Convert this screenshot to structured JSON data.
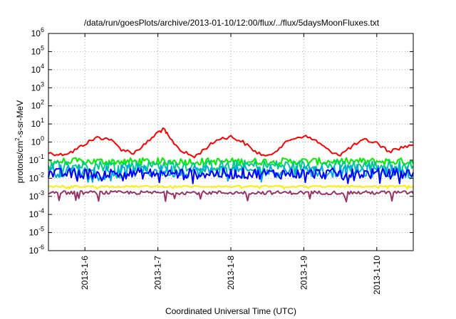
{
  "chart_data": {
    "type": "line",
    "title": "/data/run/goesPlots/archive/2013-01-10/12:00/flux/../flux/5daysMoonFluxes.txt",
    "xlabel": "Coordinated Universal Time (UTC)",
    "ylabel": {
      "prefix": "protons/cm",
      "superscript": "2",
      "suffix": "-s-sr-MeV"
    },
    "y_scale": "log",
    "ylim": [
      1e-06,
      1000000.0
    ],
    "y_ticks": [
      {
        "value": 1e-06,
        "base": "10",
        "exp": "-6"
      },
      {
        "value": 1e-05,
        "base": "10",
        "exp": "-5"
      },
      {
        "value": 0.0001,
        "base": "10",
        "exp": "-4"
      },
      {
        "value": 0.001,
        "base": "10",
        "exp": "-3"
      },
      {
        "value": 0.01,
        "base": "10",
        "exp": "-2"
      },
      {
        "value": 0.1,
        "base": "10",
        "exp": "-1"
      },
      {
        "value": 1,
        "base": "10",
        "exp": "0"
      },
      {
        "value": 10,
        "base": "10",
        "exp": "1"
      },
      {
        "value": 100,
        "base": "10",
        "exp": "2"
      },
      {
        "value": 1000,
        "base": "10",
        "exp": "3"
      },
      {
        "value": 10000,
        "base": "10",
        "exp": "4"
      },
      {
        "value": 100000,
        "base": "10",
        "exp": "5"
      },
      {
        "value": 1000000,
        "base": "10",
        "exp": "6"
      }
    ],
    "xlim": [
      "2013-01-05 12:00",
      "2013-01-10 12:00"
    ],
    "x_ticks": [
      {
        "value": "2013-01-06 00:00",
        "label": "2013-1-6"
      },
      {
        "value": "2013-01-07 00:00",
        "label": "2013-1-7"
      },
      {
        "value": "2013-01-08 00:00",
        "label": "2013-1-8"
      },
      {
        "value": "2013-01-09 00:00",
        "label": "2013-1-9"
      },
      {
        "value": "2013-01-10 00:00",
        "label": "2013-1-10"
      }
    ],
    "grid": true,
    "legend": "none",
    "series": [
      {
        "color": "#ff0000",
        "points": [
          [
            "2013-01-05 12:00",
            0.25
          ],
          [
            "2013-01-05 16:00",
            0.2
          ],
          [
            "2013-01-05 20:00",
            0.3
          ],
          [
            "2013-01-06 00:00",
            0.8
          ],
          [
            "2013-01-06 04:00",
            1.8
          ],
          [
            "2013-01-06 08:00",
            1.5
          ],
          [
            "2013-01-06 12:00",
            0.4
          ],
          [
            "2013-01-06 16:00",
            0.25
          ],
          [
            "2013-01-06 20:00",
            0.8
          ],
          [
            "2013-01-07 00:00",
            3.5
          ],
          [
            "2013-01-07 02:00",
            5
          ],
          [
            "2013-01-07 04:00",
            1.5
          ],
          [
            "2013-01-07 08:00",
            0.3
          ],
          [
            "2013-01-07 12:00",
            0.15
          ],
          [
            "2013-01-07 16:00",
            0.5
          ],
          [
            "2013-01-07 20:00",
            1.5
          ],
          [
            "2013-01-08 00:00",
            2
          ],
          [
            "2013-01-08 04:00",
            1
          ],
          [
            "2013-01-08 08:00",
            0.3
          ],
          [
            "2013-01-08 12:00",
            0.15
          ],
          [
            "2013-01-08 16:00",
            0.5
          ],
          [
            "2013-01-08 20:00",
            1.5
          ],
          [
            "2013-01-09 00:00",
            2.2
          ],
          [
            "2013-01-09 04:00",
            1.2
          ],
          [
            "2013-01-09 08:00",
            0.35
          ],
          [
            "2013-01-09 12:00",
            0.2
          ],
          [
            "2013-01-09 16:00",
            0.6
          ],
          [
            "2013-01-09 20:00",
            1.3
          ],
          [
            "2013-01-10 00:00",
            0.9
          ],
          [
            "2013-01-10 04:00",
            0.3
          ],
          [
            "2013-01-10 08:00",
            0.5
          ],
          [
            "2013-01-10 12:00",
            0.7
          ]
        ]
      },
      {
        "color": "#00ee00",
        "noisy": true,
        "center": 0.085,
        "spread": 0.2,
        "min": 0.055
      },
      {
        "color": "#00cc88",
        "noisy": true,
        "center": 0.05,
        "spread": 0.3,
        "min": 0.01
      },
      {
        "color": "#00aadd",
        "noisy": true,
        "center": 0.025,
        "spread": 0.35,
        "min": 0.006
      },
      {
        "color": "#0000ff",
        "noisy": true,
        "center": 0.018,
        "spread": 0.3,
        "min": 0.005
      },
      {
        "color": "#ffee00",
        "noisy": true,
        "center": 0.0035,
        "spread": 0.05,
        "min": 0.0025
      },
      {
        "color": "#993366",
        "noisy": true,
        "center": 0.0016,
        "spread": 0.1,
        "min": 0.0005
      }
    ]
  }
}
